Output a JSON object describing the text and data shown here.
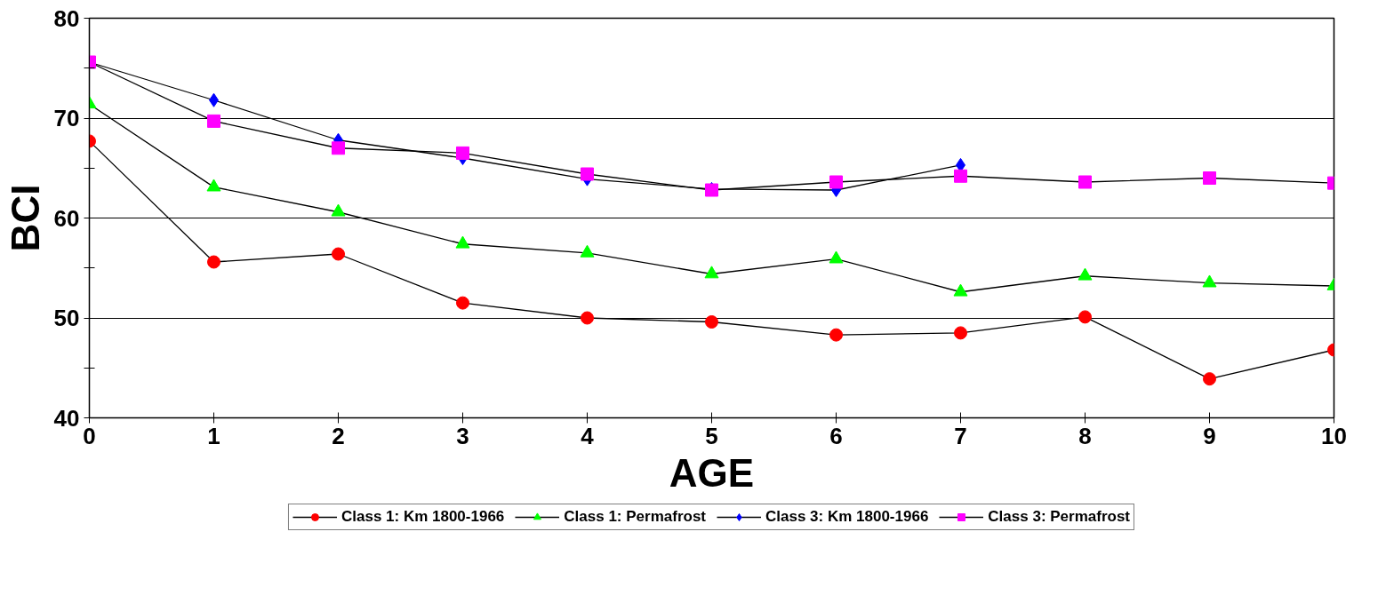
{
  "chart_data": {
    "type": "line",
    "xlabel": "AGE",
    "ylabel": "BCI",
    "x": [
      0,
      1,
      2,
      3,
      4,
      5,
      6,
      7,
      8,
      9,
      10
    ],
    "xlim": [
      0,
      10
    ],
    "xticks": [
      0,
      1,
      2,
      3,
      4,
      5,
      6,
      7,
      8,
      9,
      10
    ],
    "ylim": [
      40,
      80
    ],
    "yticks": [
      40,
      {
        "value": 45,
        "label": null
      },
      50,
      {
        "value": 55,
        "label": null
      },
      60,
      {
        "value": 65,
        "label": null
      },
      70,
      {
        "value": 75,
        "label": null
      },
      80
    ],
    "grid": "y",
    "legend": "bottom",
    "line_style": "solid",
    "series": [
      {
        "name": "Class 1: Km 1800-1966",
        "color": "#ff0000",
        "marker": "circle",
        "values": [
          67.7,
          55.6,
          56.4,
          51.5,
          50.0,
          49.6,
          48.3,
          48.5,
          50.1,
          43.9,
          46.8
        ]
      },
      {
        "name": "Class 1: Permafrost",
        "color": "#00ff00",
        "marker": "triangle",
        "values": [
          71.4,
          63.1,
          60.6,
          57.4,
          56.5,
          54.4,
          55.9,
          52.6,
          54.2,
          53.5,
          53.2
        ]
      },
      {
        "name": "Class 3: Km 1800-1966",
        "color": "#0000ff",
        "marker": "diamond",
        "values": [
          75.6,
          71.8,
          67.8,
          66.0,
          63.9,
          62.9,
          62.8,
          65.3,
          null,
          null,
          null
        ]
      },
      {
        "name": "Class 3: Permafrost",
        "color": "#ff00ff",
        "marker": "square",
        "values": [
          75.6,
          69.7,
          67.0,
          66.5,
          64.4,
          62.8,
          63.6,
          64.2,
          63.6,
          64.0,
          63.5
        ]
      }
    ]
  }
}
